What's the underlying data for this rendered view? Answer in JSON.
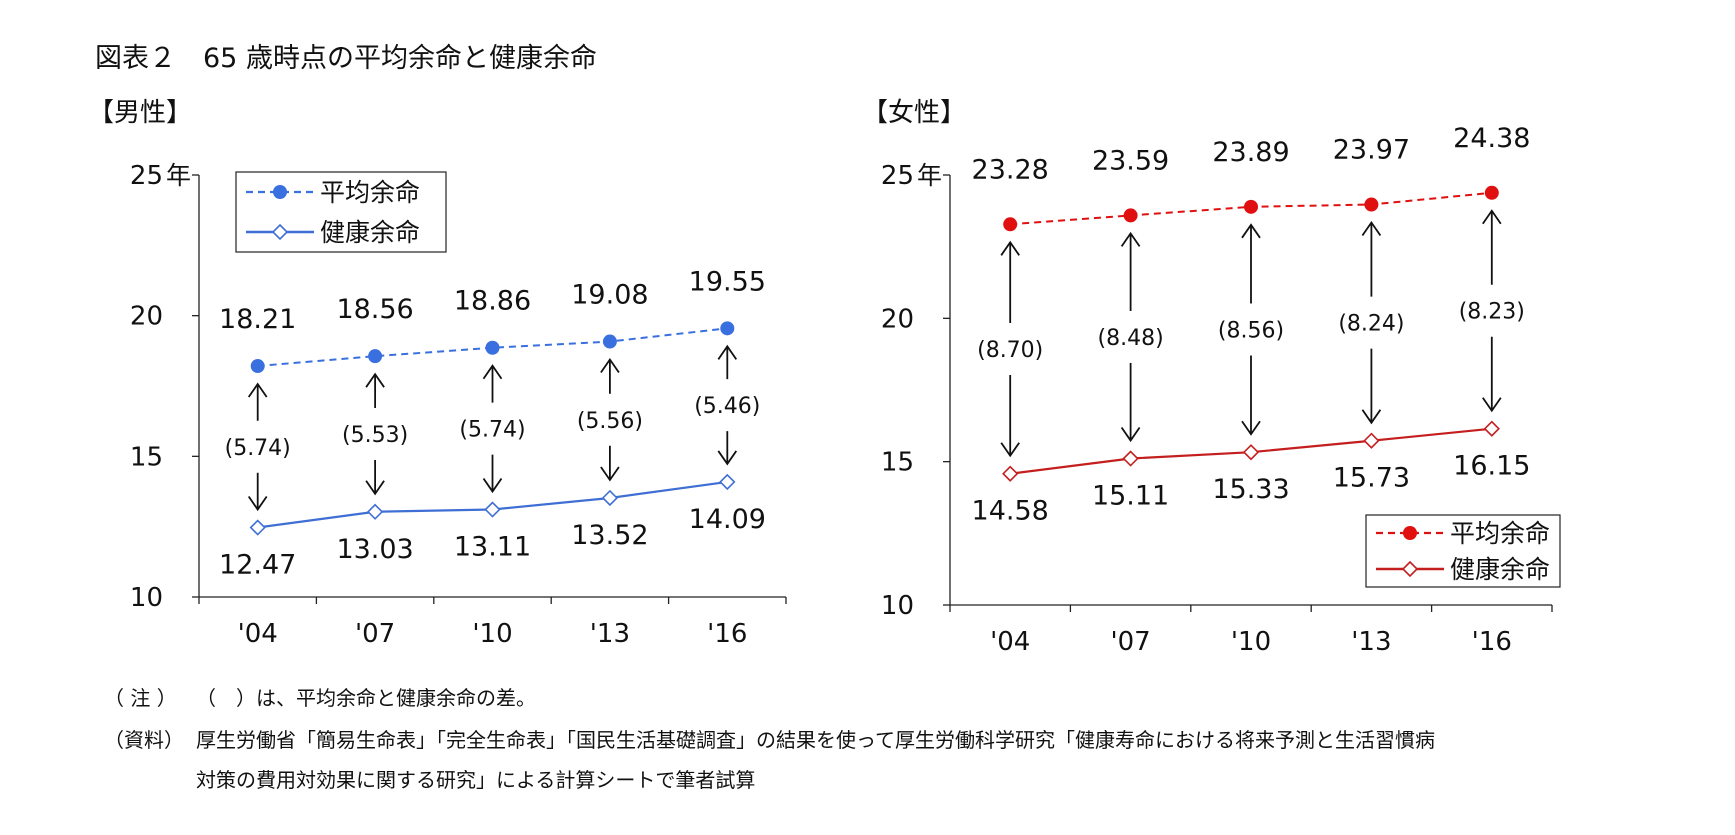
{
  "title": "図表２　65 歳時点の平均余命と健康余命",
  "panels": [
    {
      "label": "【男性】"
    },
    {
      "label": "【女性】"
    }
  ],
  "notes": {
    "note_tag": "（ 注 ）",
    "note_text": "（　）は、平均余命と健康余命の差。",
    "source_tag": "（資料）",
    "source_text_1": "厚生労働省「簡易生命表」「完全生命表」「国民生活基礎調査」の結果を使って厚生労働科学研究「健康寿命における将来予測と生活習慣病",
    "source_text_2": "対策の費用対効果に関する研究」による計算シートで筆者試算"
  },
  "chart_data": [
    {
      "type": "line",
      "panel": "【男性】",
      "categories": [
        "'04",
        "'07",
        "'10",
        "'13",
        "'16"
      ],
      "y_unit": "年",
      "ylim": [
        10,
        25
      ],
      "y_ticks": [
        10,
        15,
        20,
        25
      ],
      "legend_position": "top-left",
      "series": [
        {
          "name": "平均余命",
          "values": [
            18.21,
            18.56,
            18.86,
            19.08,
            19.55
          ],
          "color": "#3a6fe0",
          "style": "dashed",
          "marker": "filled-circle"
        },
        {
          "name": "健康余命",
          "values": [
            12.47,
            13.03,
            13.11,
            13.52,
            14.09
          ],
          "color": "#3f6fd4",
          "style": "solid",
          "marker": "open-diamond"
        }
      ],
      "differences": [
        "(5.74)",
        "(5.53)",
        "(5.74)",
        "(5.56)",
        "(5.46)"
      ],
      "value_labels": {
        "upper": [
          "18.21",
          "18.56",
          "18.86",
          "19.08",
          "19.55"
        ],
        "lower": [
          "12.47",
          "13.03",
          "13.11",
          "13.52",
          "14.09"
        ]
      }
    },
    {
      "type": "line",
      "panel": "【女性】",
      "categories": [
        "'04",
        "'07",
        "'10",
        "'13",
        "'16"
      ],
      "y_unit": "年",
      "ylim": [
        10,
        25
      ],
      "y_ticks": [
        10,
        15,
        20,
        25
      ],
      "legend_position": "bottom-right",
      "series": [
        {
          "name": "平均余命",
          "values": [
            23.28,
            23.59,
            23.89,
            23.97,
            24.38
          ],
          "color": "#e01010",
          "style": "dashed",
          "marker": "filled-circle"
        },
        {
          "name": "健康余命",
          "values": [
            14.58,
            15.11,
            15.33,
            15.73,
            16.15
          ],
          "color": "#c41e1e",
          "style": "solid",
          "marker": "open-diamond"
        }
      ],
      "differences": [
        "(8.70)",
        "(8.48)",
        "(8.56)",
        "(8.24)",
        "(8.23)"
      ],
      "value_labels": {
        "upper": [
          "23.28",
          "23.59",
          "23.89",
          "23.97",
          "24.38"
        ],
        "lower": [
          "14.58",
          "15.11",
          "15.33",
          "15.73",
          "16.15"
        ]
      }
    }
  ]
}
